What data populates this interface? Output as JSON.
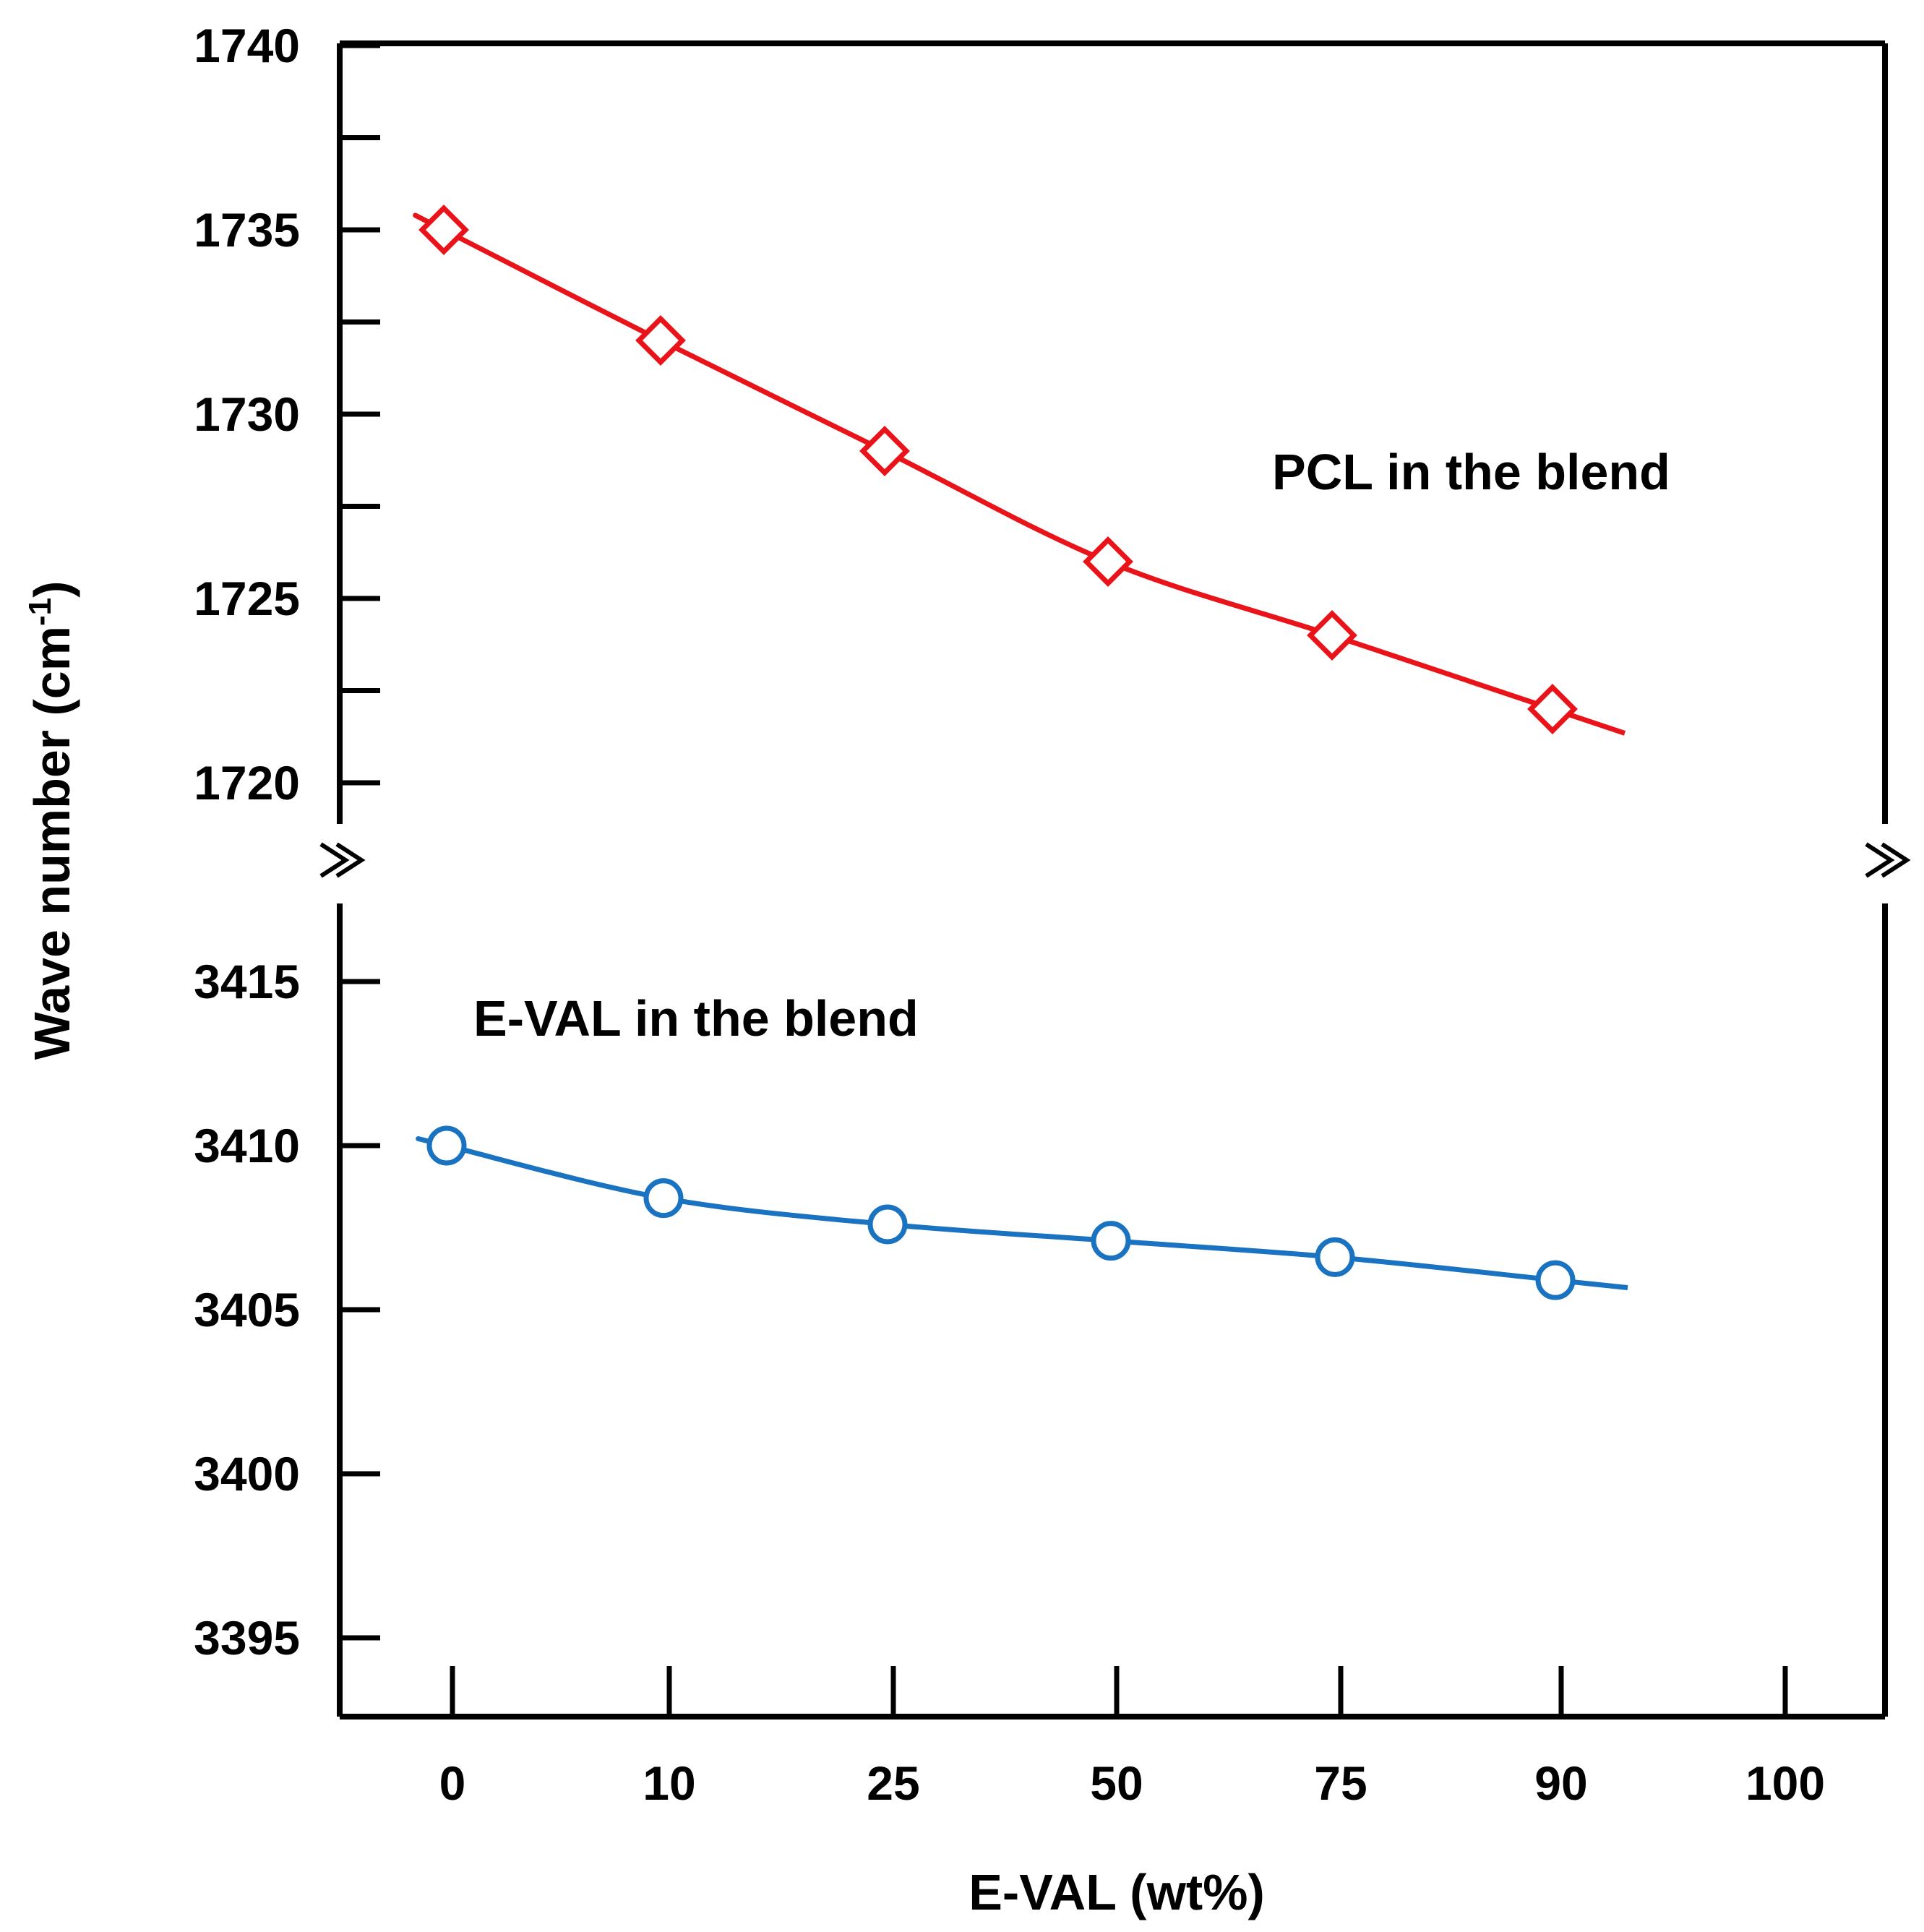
{
  "chart_data": {
    "type": "line",
    "title": "",
    "xlabel": "E-VAL (wt%)",
    "ylabel_main": "Wave number (cm",
    "ylabel_sup": "-1",
    "ylabel_close": ")",
    "categories": [
      "0",
      "10",
      "25",
      "50",
      "75",
      "90",
      "100"
    ],
    "grid": false,
    "upper_panel": {
      "ylim": [
        1718,
        1740
      ],
      "ticks": [
        1720,
        1725,
        1730,
        1735,
        1740
      ],
      "tick_labels": [
        "1720",
        "1725",
        "1730",
        "1735",
        "1740"
      ],
      "series": [
        {
          "name": "PCL",
          "annotation": "PCL in the blend",
          "marker": "diamond",
          "color": "#e8141a",
          "values": [
            1735.0,
            1732.0,
            1729.0,
            1726.0,
            1724.0,
            1722.0
          ]
        }
      ]
    },
    "lower_panel": {
      "ylim": [
        3392,
        3417
      ],
      "ticks": [
        3395,
        3400,
        3405,
        3410,
        3415
      ],
      "tick_labels": [
        "3395",
        "3400",
        "3405",
        "3410",
        "3415"
      ],
      "series": [
        {
          "name": "E-VAL",
          "annotation": "E-VAL in the blend",
          "marker": "circle",
          "color": "#1a73c0",
          "values": [
            3410.0,
            3408.4,
            3407.6,
            3407.1,
            3406.6,
            3405.9
          ]
        }
      ]
    }
  }
}
